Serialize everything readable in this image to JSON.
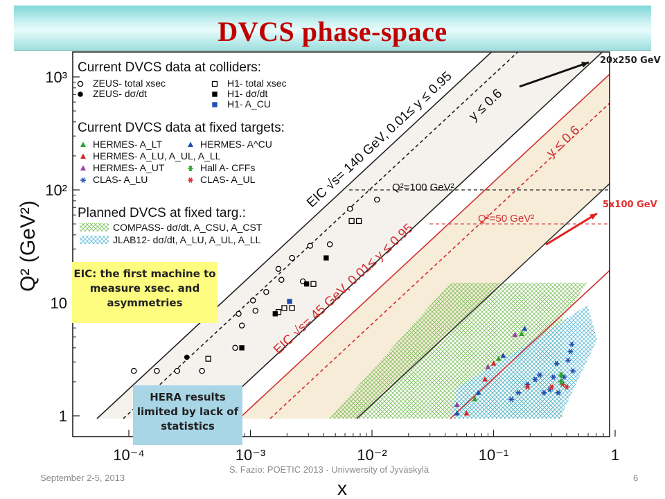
{
  "title": "DVCS phase-space",
  "beam_labels": {
    "high": "20x250 GeV",
    "low": "5x100 GeV"
  },
  "callouts": {
    "eic": "EIC: the first machine to measure xsec. and asymmetries",
    "hera": "HERA results limited by lack of statistics"
  },
  "footer": {
    "date": "September 2-5, 2013",
    "center": "S. Fazio: POETIC 2013 - Univwersity of Jyväskylä",
    "page": "6"
  },
  "colors": {
    "title": "#c00000",
    "red_arrow": "#e02020",
    "eic_fill": "#f6ecd8",
    "eic140_fill": "#f5f2ee"
  },
  "chart_data": {
    "type": "scatter",
    "xlabel": "x",
    "ylabel": "Q² (GeV²)",
    "xscale": "log",
    "yscale": "log",
    "xlim": [
      5e-05,
      1
    ],
    "ylim": [
      0.6,
      1500
    ],
    "x_ticks": [
      {
        "v": 0.0001,
        "label": "10⁻⁴"
      },
      {
        "v": 0.001,
        "label": "10⁻³"
      },
      {
        "v": 0.01,
        "label": "10⁻²"
      },
      {
        "v": 0.1,
        "label": "10⁻¹"
      },
      {
        "v": 1,
        "label": "1"
      }
    ],
    "y_ticks": [
      {
        "v": 1,
        "label": "1"
      },
      {
        "v": 10,
        "label": "10"
      },
      {
        "v": 100,
        "label": "10²"
      },
      {
        "v": 1000,
        "label": "10³"
      }
    ],
    "legend": {
      "h1": "Current DVCS data at colliders:",
      "collider_items": [
        {
          "marker": "open-circle",
          "color": "#000000",
          "text": "ZEUS- total xsec"
        },
        {
          "marker": "filled-circle",
          "color": "#000000",
          "text": "ZEUS- dσ/dt"
        },
        {
          "marker": "open-square",
          "color": "#000000",
          "text": "H1- total xsec"
        },
        {
          "marker": "filled-square",
          "color": "#000000",
          "text": "H1- dσ/dt"
        },
        {
          "marker": "filled-square",
          "color": "#1f4fb0",
          "text": "H1- A_CU"
        }
      ],
      "h2": "Current DVCS data at fixed targets:",
      "fixed_items": [
        {
          "marker": "triangle",
          "color": "#2ca02c",
          "text": "HERMES- A_LT"
        },
        {
          "marker": "triangle",
          "color": "#1f4fb0",
          "text": "HERMES- A^CU"
        },
        {
          "marker": "triangle",
          "color": "#d62728",
          "text": "HERMES- A_LU, A_UL, A_LL"
        },
        {
          "marker": "triangle",
          "color": "#9b3fa0",
          "text": "HERMES- A_UT"
        },
        {
          "marker": "star",
          "color": "#2ca02c",
          "text": "Hall A- CFFs"
        },
        {
          "marker": "asterisk",
          "color": "#1f4fb0",
          "text": "CLAS- A_LU"
        },
        {
          "marker": "asterisk",
          "color": "#d62728",
          "text": "CLAS- A_UL"
        }
      ],
      "h3": "Planned DVCS at fixed targ.:",
      "planned_items": [
        {
          "pattern": "green-hatch",
          "text": "COMPASS- dσ/dt, A_CSU, A_CST"
        },
        {
          "pattern": "blue-hatch",
          "text": "JLAB12- dσ/dt, A_LU, A_UL, A_LL"
        }
      ]
    },
    "band_labels": {
      "eic140": "EIC √s= 140 GeV, 0.01≤ y ≤ 0.95",
      "eic140_y06": "y ≤ 0.6",
      "eic45": "EIC √s= 45 GeV, 0.01≤ y ≤ 0.95",
      "eic45_y06": "y ≤ 0.6",
      "q2_100": "Q²=100 GeV²",
      "q2_50": "Q²=50 GeV²"
    },
    "zeus_total": [
      {
        "x": 0.00011,
        "y": 2.5
      },
      {
        "x": 0.00017,
        "y": 2.5
      },
      {
        "x": 0.00025,
        "y": 2.5
      },
      {
        "x": 0.0004,
        "y": 2.5
      },
      {
        "x": 0.00075,
        "y": 4
      },
      {
        "x": 0.0008,
        "y": 8
      },
      {
        "x": 0.00085,
        "y": 6.3
      },
      {
        "x": 0.0011,
        "y": 8.5
      },
      {
        "x": 0.00135,
        "y": 12.5
      },
      {
        "x": 0.00105,
        "y": 10.5
      },
      {
        "x": 0.0017,
        "y": 20
      },
      {
        "x": 0.0018,
        "y": 16
      },
      {
        "x": 0.0022,
        "y": 25
      },
      {
        "x": 0.0031,
        "y": 32
      },
      {
        "x": 0.0045,
        "y": 33
      },
      {
        "x": 0.0066,
        "y": 68
      },
      {
        "x": 0.011,
        "y": 82
      },
      {
        "x": 0.0027,
        "y": 15.5
      }
    ],
    "zeus_dsdt": [
      {
        "x": 0.0003,
        "y": 3.3
      }
    ],
    "h1_total": [
      {
        "x": 0.00045,
        "y": 3.2
      },
      {
        "x": 0.0017,
        "y": 8.3
      },
      {
        "x": 0.0019,
        "y": 9
      },
      {
        "x": 0.0022,
        "y": 9
      },
      {
        "x": 0.0033,
        "y": 14.7
      },
      {
        "x": 0.0068,
        "y": 53
      },
      {
        "x": 0.0078,
        "y": 53
      }
    ],
    "h1_dsdt": [
      {
        "x": 0.00085,
        "y": 4
      },
      {
        "x": 0.0016,
        "y": 8
      },
      {
        "x": 0.0029,
        "y": 14.7
      },
      {
        "x": 0.0042,
        "y": 25
      }
    ],
    "h1_acu": [
      {
        "x": 0.0021,
        "y": 10.3
      }
    ],
    "hermes_triangles": [
      {
        "x": 0.05,
        "y": 1.25,
        "c": "#9b3fa0"
      },
      {
        "x": 0.05,
        "y": 1.05,
        "c": "#1f4fb0"
      },
      {
        "x": 0.06,
        "y": 1.05,
        "c": "#d62728"
      },
      {
        "x": 0.07,
        "y": 1.4,
        "c": "#2ca02c"
      },
      {
        "x": 0.075,
        "y": 1.6,
        "c": "#1f4fb0"
      },
      {
        "x": 0.085,
        "y": 2.1,
        "c": "#d62728"
      },
      {
        "x": 0.09,
        "y": 2.7,
        "c": "#9b3fa0"
      },
      {
        "x": 0.1,
        "y": 2.9,
        "c": "#d62728"
      },
      {
        "x": 0.11,
        "y": 3.2,
        "c": "#2ca02c"
      },
      {
        "x": 0.12,
        "y": 3.4,
        "c": "#1f4fb0"
      },
      {
        "x": 0.15,
        "y": 5.2,
        "c": "#9b3fa0"
      },
      {
        "x": 0.17,
        "y": 5.3,
        "c": "#2ca02c"
      },
      {
        "x": 0.18,
        "y": 5.9,
        "c": "#1f4fb0"
      }
    ],
    "clas_alu": [
      {
        "x": 0.14,
        "y": 1.4
      },
      {
        "x": 0.16,
        "y": 1.6
      },
      {
        "x": 0.19,
        "y": 1.9
      },
      {
        "x": 0.22,
        "y": 2.1
      },
      {
        "x": 0.24,
        "y": 2.3
      },
      {
        "x": 0.26,
        "y": 1.6
      },
      {
        "x": 0.29,
        "y": 1.7
      },
      {
        "x": 0.31,
        "y": 2.2
      },
      {
        "x": 0.34,
        "y": 1.6
      },
      {
        "x": 0.33,
        "y": 2.9
      },
      {
        "x": 0.38,
        "y": 2.2
      },
      {
        "x": 0.41,
        "y": 3.1
      },
      {
        "x": 0.43,
        "y": 3.7
      },
      {
        "x": 0.44,
        "y": 4.3
      },
      {
        "x": 0.45,
        "y": 2.5
      }
    ],
    "clas_aul": [
      {
        "x": 0.19,
        "y": 1.8
      },
      {
        "x": 0.3,
        "y": 1.8
      },
      {
        "x": 0.37,
        "y": 1.9
      },
      {
        "x": 0.4,
        "y": 1.8
      }
    ],
    "halla": [
      {
        "x": 0.36,
        "y": 2.0
      },
      {
        "x": 0.36,
        "y": 2.3
      }
    ]
  }
}
